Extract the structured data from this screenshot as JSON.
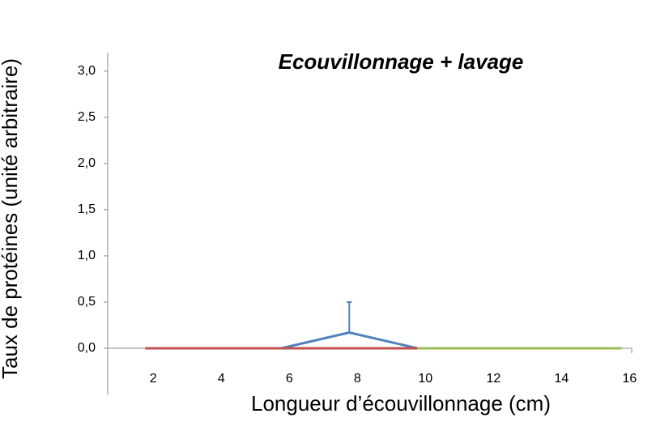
{
  "chart_data": {
    "type": "line",
    "title": "Ecouvillonnage + lavage",
    "ylabel": "Taux de protéines (unité arbitraire)",
    "xlabel": "Longueur d’écouvillonnage (cm)",
    "xlim": [
      0.9,
      16.3
    ],
    "xticks": [
      2,
      4,
      6,
      8,
      10,
      12,
      14,
      16
    ],
    "ylim": [
      -0.5,
      3.2
    ],
    "yticks": [
      {
        "value": 0,
        "label": "0,0"
      },
      {
        "value": 0.5,
        "label": "0,5"
      },
      {
        "value": 1,
        "label": "1,0"
      },
      {
        "value": 1.5,
        "label": "1,5"
      },
      {
        "value": 2,
        "label": "2,0"
      },
      {
        "value": 2.5,
        "label": "2,5"
      },
      {
        "value": 3,
        "label": "3,0"
      }
    ],
    "series": [
      {
        "color": "#4f81bd",
        "x": [
          6,
          8,
          10
        ],
        "values": [
          0,
          0.17,
          0
        ],
        "errors": [
          0,
          0.33,
          0
        ]
      },
      {
        "color": "#c0504d",
        "x": [
          2,
          4,
          6,
          8,
          10
        ],
        "values": [
          0,
          0,
          0,
          0,
          0
        ]
      },
      {
        "color": "#9bbb59",
        "x": [
          10,
          12,
          14,
          16
        ],
        "values": [
          0,
          0,
          0,
          0
        ]
      }
    ]
  }
}
